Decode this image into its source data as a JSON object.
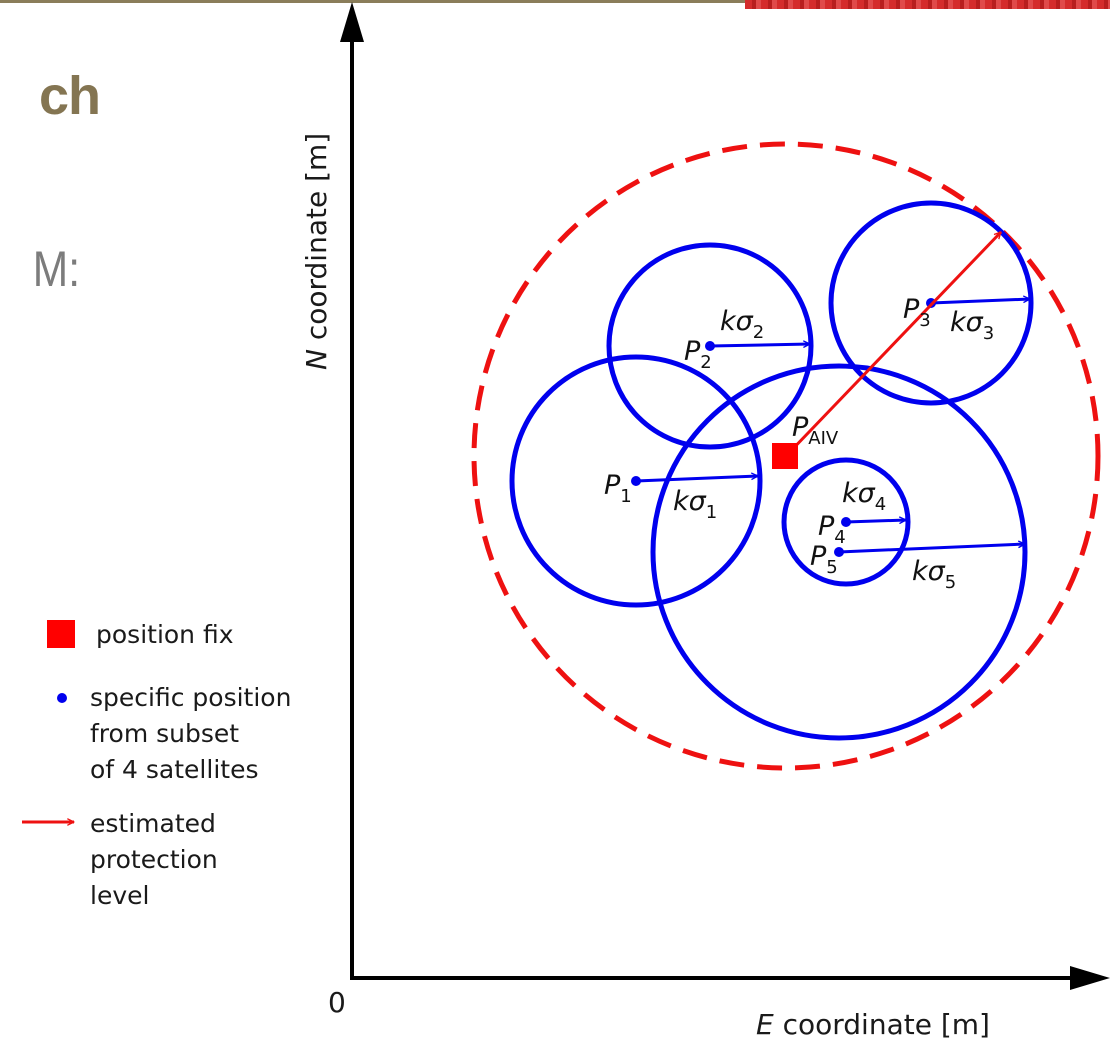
{
  "slide": {
    "title_fragment": "ch",
    "bullet_fragment": "M:"
  },
  "axes": {
    "x_label_var": "E",
    "x_label_rest": " coordinate [m]",
    "y_label_var": "N",
    "y_label_rest": " coordinate [m]",
    "origin_label": "0"
  },
  "legend": {
    "position_fix": "position fix",
    "specific_position": [
      "specific position",
      "from subset",
      "of 4 satellites"
    ],
    "protection_level": [
      "estimated",
      "protection",
      "level"
    ]
  },
  "labels": {
    "p1": {
      "base": "P",
      "sub": "1"
    },
    "p2": {
      "base": "P",
      "sub": "2"
    },
    "p3": {
      "base": "P",
      "sub": "3"
    },
    "p4": {
      "base": "P",
      "sub": "4"
    },
    "p5": {
      "base": "P",
      "sub": "5"
    },
    "paiv": {
      "base": "P",
      "sub": "AIV"
    },
    "ks1": {
      "base": "kσ",
      "sub": "1"
    },
    "ks2": {
      "base": "kσ",
      "sub": "2"
    },
    "ks3": {
      "base": "kσ",
      "sub": "3"
    },
    "ks4": {
      "base": "kσ",
      "sub": "4"
    },
    "ks5": {
      "base": "kσ",
      "sub": "5"
    }
  },
  "colors": {
    "circles": "#0000ee",
    "fix": "#ff0000",
    "protection": "#ee1111",
    "axis": "#000000"
  }
}
